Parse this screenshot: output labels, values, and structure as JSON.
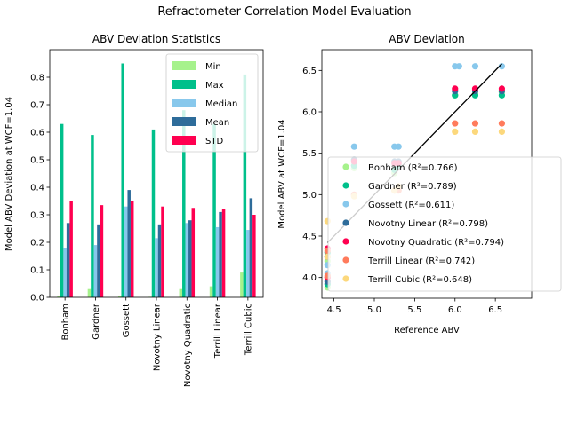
{
  "figure": {
    "suptitle": "Refractometer Correlation Model Evaluation"
  },
  "chart_data": [
    {
      "type": "bar",
      "title": "ABV Deviation Statistics",
      "xlabel": "",
      "ylabel": "Model ABV Deviation at WCF=1.04",
      "ylim": [
        0,
        0.9
      ],
      "yticks": [
        "0.0",
        "0.1",
        "0.2",
        "0.3",
        "0.4",
        "0.5",
        "0.6",
        "0.7",
        "0.8"
      ],
      "legend_position": "top-right",
      "categories": [
        "Bonham",
        "Gardner",
        "Gossett",
        "Novotny Linear",
        "Novotny Quadratic",
        "Terrill Linear",
        "Terrill Cubic"
      ],
      "series": [
        {
          "name": "Min",
          "color": "#a6f28c",
          "values": [
            0.005,
            0.03,
            0.005,
            0.002,
            0.03,
            0.04,
            0.09
          ]
        },
        {
          "name": "Max",
          "color": "#00c08b",
          "values": [
            0.63,
            0.59,
            0.85,
            0.61,
            0.68,
            0.63,
            0.81
          ]
        },
        {
          "name": "Median",
          "color": "#88c8ec",
          "values": [
            0.18,
            0.19,
            0.33,
            0.215,
            0.27,
            0.255,
            0.245
          ]
        },
        {
          "name": "Mean",
          "color": "#2e6c9a",
          "values": [
            0.27,
            0.265,
            0.39,
            0.265,
            0.28,
            0.31,
            0.36
          ]
        },
        {
          "name": "STD",
          "color": "#ff0050",
          "values": [
            0.35,
            0.335,
            0.35,
            0.33,
            0.325,
            0.32,
            0.3
          ]
        }
      ]
    },
    {
      "type": "scatter",
      "title": "ABV Deviation",
      "xlabel": "Reference ABV",
      "ylabel": "Model ABV at WCF=1.04",
      "xlim": [
        4.35,
        6.95
      ],
      "ylim": [
        3.75,
        6.75
      ],
      "xticks": [
        "4.5",
        "5.0",
        "5.5",
        "6.0",
        "6.5"
      ],
      "yticks": [
        "4.0",
        "4.5",
        "5.0",
        "5.5",
        "6.0",
        "6.5"
      ],
      "legend_position": "center-right",
      "reference_line": {
        "x": [
          4.42,
          6.58
        ],
        "y": [
          4.42,
          6.58
        ],
        "color": "#000000"
      },
      "series": [
        {
          "name": "Bonham (R²=0.766)",
          "color": "#a6f28c",
          "x": [
            4.42,
            4.42,
            4.75,
            5.25,
            5.25,
            6.0,
            6.25,
            6.58
          ],
          "y": [
            3.88,
            4.2,
            5.32,
            5.3,
            5.26,
            6.2,
            6.22,
            6.24
          ]
        },
        {
          "name": "Gardner (R²=0.789)",
          "color": "#00c08b",
          "x": [
            4.42,
            4.42,
            4.75,
            5.25,
            5.3,
            6.0,
            6.25,
            6.58
          ],
          "y": [
            3.92,
            4.3,
            5.35,
            5.3,
            5.35,
            6.2,
            6.2,
            6.2
          ]
        },
        {
          "name": "Gossett (R²=0.611)",
          "color": "#88c8ec",
          "x": [
            4.42,
            4.42,
            4.75,
            5.25,
            5.3,
            6.0,
            6.05,
            6.25,
            6.58
          ],
          "y": [
            4.05,
            4.15,
            5.58,
            5.58,
            5.58,
            6.55,
            6.55,
            6.55,
            6.55
          ]
        },
        {
          "name": "Novotny Linear (R²=0.798)",
          "color": "#2e6c9a",
          "x": [
            4.42,
            4.42,
            4.75,
            5.25,
            5.3,
            6.0,
            6.25,
            6.58
          ],
          "y": [
            3.95,
            4.25,
            5.42,
            5.4,
            5.4,
            6.25,
            6.25,
            6.25
          ]
        },
        {
          "name": "Novotny Quadratic (R²=0.794)",
          "color": "#ff0050",
          "x": [
            4.42,
            4.42,
            4.75,
            5.25,
            5.3,
            6.0,
            6.25,
            6.58
          ],
          "y": [
            4.0,
            4.35,
            5.4,
            5.38,
            5.38,
            6.28,
            6.28,
            6.28
          ]
        },
        {
          "name": "Terrill Linear (R²=0.742)",
          "color": "#ff7b5c",
          "x": [
            4.42,
            4.42,
            4.75,
            5.25,
            5.3,
            6.0,
            6.25,
            6.58
          ],
          "y": [
            4.02,
            4.32,
            5.0,
            5.05,
            5.05,
            5.86,
            5.86,
            5.86
          ]
        },
        {
          "name": "Terrill Cubic (R²=0.648)",
          "color": "#fcd87c",
          "x": [
            4.42,
            4.42,
            4.75,
            5.25,
            5.3,
            6.0,
            6.25,
            6.58
          ],
          "y": [
            4.25,
            4.68,
            4.98,
            5.05,
            5.1,
            5.76,
            5.76,
            5.76
          ]
        }
      ]
    }
  ]
}
